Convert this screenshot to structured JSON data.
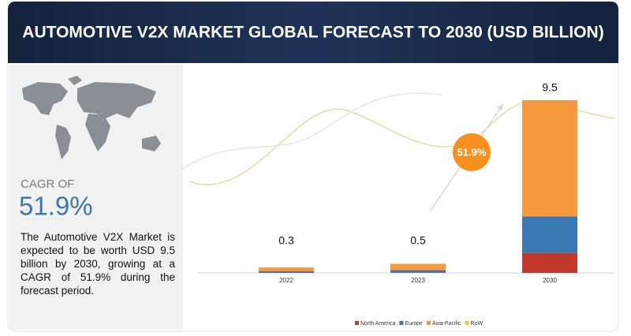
{
  "chart_data": {
    "type": "stacked_bar",
    "title": "AUTOMOTIVE V2X MARKET GLOBAL FORECAST TO 2030 (USD BILLION)",
    "categories": [
      "2022",
      "2023",
      "2030"
    ],
    "series": [
      {
        "name": "North America",
        "color": "#c0392b",
        "values": [
          0.02,
          0.03,
          1.1
        ]
      },
      {
        "name": "Europe",
        "color": "#3a78b5",
        "values": [
          0.08,
          0.12,
          2.0
        ]
      },
      {
        "name": "Asia-Pacific",
        "color": "#f79a3e",
        "values": [
          0.2,
          0.35,
          6.4
        ]
      },
      {
        "name": "RoW",
        "color": "#f5c542",
        "values": [
          0,
          0,
          0
        ]
      }
    ],
    "totals": [
      0.3,
      0.5,
      9.5
    ],
    "badge": "51.9%"
  },
  "sidebar": {
    "cagr_label": "CAGR OF",
    "cagr_value": "51.9%",
    "description": "The Automotive V2X Market is expected to be worth USD 9.5 billion by 2030, growing at a CAGR of 51.9% during the forecast period."
  }
}
